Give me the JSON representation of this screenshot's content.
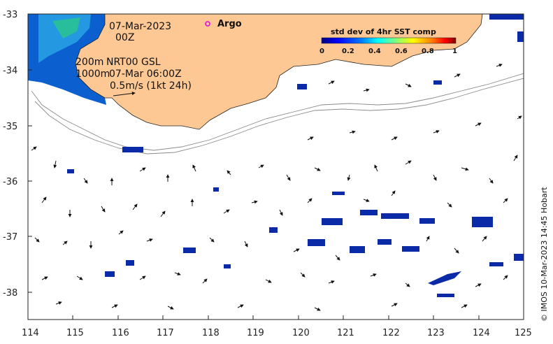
{
  "map": {
    "date_label": "07-Mar-2023",
    "time_label": "00Z",
    "legend_argo": "Argo",
    "contour_label_1": "200m",
    "contour_label_2": "1000m",
    "product_label": "NRT00 GSL",
    "product_time": "07-Mar 06:00Z",
    "scale_label": "0.5m/s (1kt 24h)",
    "credit": "© IMOS 10-Mar-2023 14:45 Hobart"
  },
  "axes": {
    "x_ticks": [
      "114",
      "115",
      "116",
      "117",
      "118",
      "119",
      "120",
      "121",
      "122",
      "123",
      "124",
      "125"
    ],
    "y_ticks": [
      "-33",
      "-34",
      "-35",
      "-36",
      "-37",
      "-38"
    ]
  },
  "colorbar": {
    "title": "std dev of 4hr SST comp",
    "ticks": [
      "0",
      "0.2",
      "0.4",
      "0.6",
      "0.8",
      "1"
    ],
    "range": [
      0,
      1
    ],
    "colors": [
      "#00007f",
      "#0000ff",
      "#007fff",
      "#00ffff",
      "#7fff7f",
      "#ffff00",
      "#ff7f00",
      "#ff0000",
      "#7f0000"
    ]
  },
  "colors": {
    "land": "#fdc894",
    "argo_marker": "#e000e0",
    "high_sst": "#0a2aa8",
    "contour": "#8a8a8a"
  }
}
